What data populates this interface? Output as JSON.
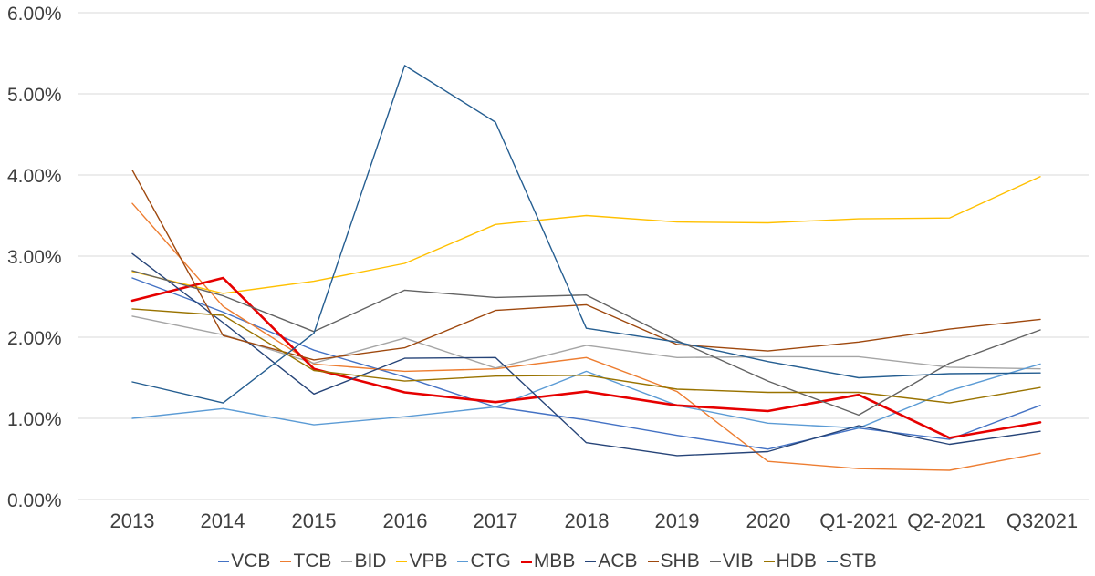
{
  "chart_data": {
    "type": "line",
    "title": "",
    "xlabel": "",
    "ylabel": "",
    "categories": [
      "2013",
      "2014",
      "2015",
      "2016",
      "2017",
      "2018",
      "2019",
      "2020",
      "Q1-2021",
      "Q2-2021",
      "Q32021"
    ],
    "y_axis": {
      "min": 0,
      "max": 6,
      "step": 1,
      "tick_labels": [
        "0.00%",
        "1.00%",
        "2.00%",
        "3.00%",
        "4.00%",
        "5.00%",
        "6.00%"
      ],
      "grid": true
    },
    "legend_position": "bottom",
    "legend_dash_glyph": "-",
    "series": [
      {
        "name": "VCB",
        "color": "#4472C4",
        "emphasis": false,
        "values": [
          2.73,
          2.31,
          1.84,
          1.51,
          1.14,
          0.98,
          0.79,
          0.62,
          0.88,
          0.74,
          1.16
        ]
      },
      {
        "name": "TCB",
        "color": "#ED7D31",
        "emphasis": false,
        "values": [
          3.65,
          2.38,
          1.67,
          1.58,
          1.61,
          1.75,
          1.33,
          0.47,
          0.38,
          0.36,
          0.57
        ]
      },
      {
        "name": "BID",
        "color": "#A5A5A5",
        "emphasis": false,
        "values": [
          2.26,
          2.03,
          1.68,
          1.99,
          1.62,
          1.9,
          1.75,
          1.76,
          1.76,
          1.63,
          1.61
        ]
      },
      {
        "name": "VPB",
        "color": "#FFC000",
        "emphasis": false,
        "values": [
          2.81,
          2.54,
          2.69,
          2.91,
          3.39,
          3.5,
          3.42,
          3.41,
          3.46,
          3.47,
          3.98
        ]
      },
      {
        "name": "CTG",
        "color": "#5B9BD5",
        "emphasis": false,
        "values": [
          1.0,
          1.12,
          0.92,
          1.02,
          1.14,
          1.58,
          1.16,
          0.94,
          0.88,
          1.34,
          1.67
        ]
      },
      {
        "name": "MBB",
        "color": "#E60000",
        "emphasis": true,
        "values": [
          2.45,
          2.73,
          1.61,
          1.32,
          1.2,
          1.33,
          1.16,
          1.09,
          1.29,
          0.76,
          0.95
        ]
      },
      {
        "name": "ACB",
        "color": "#264478",
        "emphasis": false,
        "values": [
          3.03,
          2.18,
          1.3,
          1.74,
          1.75,
          0.7,
          0.54,
          0.59,
          0.91,
          0.68,
          0.84
        ]
      },
      {
        "name": "SHB",
        "color": "#9E480E",
        "emphasis": false,
        "values": [
          4.06,
          2.02,
          1.72,
          1.87,
          2.33,
          2.4,
          1.91,
          1.83,
          1.94,
          2.1,
          2.22
        ]
      },
      {
        "name": "VIB",
        "color": "#636363",
        "emphasis": false,
        "values": [
          2.82,
          2.51,
          2.07,
          2.58,
          2.49,
          2.52,
          1.96,
          1.46,
          1.04,
          1.68,
          2.09
        ]
      },
      {
        "name": "HDB",
        "color": "#997300",
        "emphasis": false,
        "values": [
          2.35,
          2.27,
          1.59,
          1.46,
          1.52,
          1.53,
          1.36,
          1.32,
          1.32,
          1.19,
          1.38
        ]
      },
      {
        "name": "STB",
        "color": "#255E91",
        "emphasis": false,
        "values": [
          1.45,
          1.19,
          2.05,
          5.35,
          4.65,
          2.11,
          1.94,
          1.7,
          1.5,
          1.55,
          1.56
        ]
      }
    ]
  }
}
